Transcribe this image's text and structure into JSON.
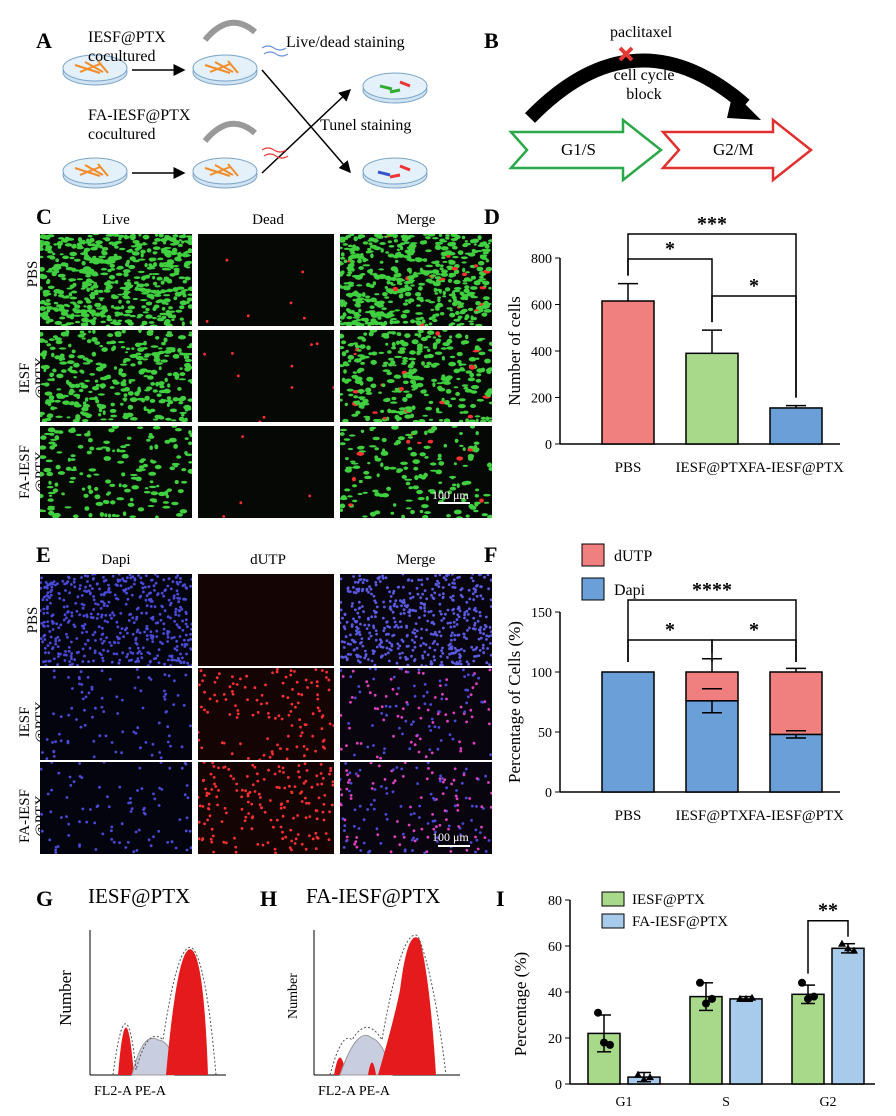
{
  "panels": {
    "A": "A",
    "B": "B",
    "C": "C",
    "D": "D",
    "E": "E",
    "F": "F",
    "G": "G",
    "H": "H",
    "I": "I"
  },
  "panelA": {
    "group1": "IESF@PTX\ncocultured",
    "group2": "FA-IESF@PTX\ncocultured",
    "out1": "Live/dead staining",
    "out2": "Tunel staining"
  },
  "panelB": {
    "drug": "paclitaxel",
    "block": "cell cycle\nblock",
    "phase1": "G1/S",
    "phase2": "G2/M",
    "colors": {
      "phase1": "#2aa84a",
      "phase2": "#e03030",
      "block": "#e53935"
    }
  },
  "panelC": {
    "columns": [
      "Live",
      "Dead",
      "Merge"
    ],
    "rows": [
      "PBS",
      "IESF\n@PTX",
      "FA-IESF\n@PTX"
    ],
    "scalebar": "100 μm"
  },
  "panelE": {
    "columns": [
      "Dapi",
      "dUTP",
      "Merge"
    ],
    "rows": [
      "PBS",
      "IESF\n@PTX",
      "FA-IESF\n@PTX"
    ],
    "scalebar": "100 μm"
  },
  "panelG": {
    "title": "IESF@PTX",
    "ylabel": "Number",
    "xlabel": "FL2-A PE-A"
  },
  "panelH": {
    "title": "FA-IESF@PTX",
    "ylabel": "Number",
    "xlabel": "FL2-A PE-A"
  },
  "chart_data": [
    {
      "id": "D",
      "type": "bar",
      "categories": [
        "PBS",
        "IESF@PTX",
        "FA-IESF@PTX"
      ],
      "values": [
        615,
        390,
        155
      ],
      "errors": [
        75,
        100,
        10
      ],
      "colors": [
        "#f08080",
        "#a8d88a",
        "#6a9fd8"
      ],
      "ylabel": "Number of cells",
      "ylim": [
        0,
        800
      ],
      "yticks": [
        0,
        200,
        400,
        600,
        800
      ],
      "significance": [
        {
          "from": 0,
          "to": 1,
          "label": "*"
        },
        {
          "from": 1,
          "to": 2,
          "label": "*"
        },
        {
          "from": 0,
          "to": 2,
          "label": "***"
        }
      ]
    },
    {
      "id": "F",
      "type": "bar",
      "stacked": true,
      "categories": [
        "PBS",
        "IESF@PTX",
        "FA-IESF@PTX"
      ],
      "series": [
        {
          "name": "Dapi",
          "values": [
            100,
            76,
            48
          ],
          "color": "#6a9fd8"
        },
        {
          "name": "dUTP",
          "values": [
            0,
            24,
            52
          ],
          "color": "#f08080"
        }
      ],
      "error_tops": [
        null,
        11,
        3
      ],
      "error_mids": [
        null,
        10,
        3
      ],
      "ylabel": "Percentage of Cells (%)",
      "ylim": [
        0,
        150
      ],
      "yticks": [
        0,
        50,
        100,
        150
      ],
      "significance": [
        {
          "from": 0,
          "to": 1,
          "label": "*"
        },
        {
          "from": 1,
          "to": 2,
          "label": "*"
        },
        {
          "from": 0,
          "to": 2,
          "label": "****"
        }
      ]
    },
    {
      "id": "I",
      "type": "bar",
      "categories": [
        "G1",
        "S",
        "G2"
      ],
      "series": [
        {
          "name": "IESF@PTX",
          "values": [
            22,
            38,
            39
          ],
          "errors": [
            8,
            6,
            4
          ],
          "points": [
            [
              31,
              18,
              17
            ],
            [
              44,
              35,
              37
            ],
            [
              44,
              37,
              38
            ]
          ],
          "color": "#a8d88a"
        },
        {
          "name": "FA-IESF@PTX",
          "values": [
            3,
            37,
            59
          ],
          "errors": [
            2,
            1,
            2
          ],
          "points": [
            [
              4,
              2,
              3
            ],
            [
              37,
              37,
              37.5
            ],
            [
              61,
              59,
              58
            ]
          ],
          "color": "#a8cbeb"
        }
      ],
      "ylabel": "Percentage (%)",
      "ylim": [
        0,
        80
      ],
      "yticks": [
        0,
        20,
        40,
        60,
        80
      ],
      "significance": [
        {
          "category": 2,
          "label": "**"
        }
      ]
    }
  ]
}
